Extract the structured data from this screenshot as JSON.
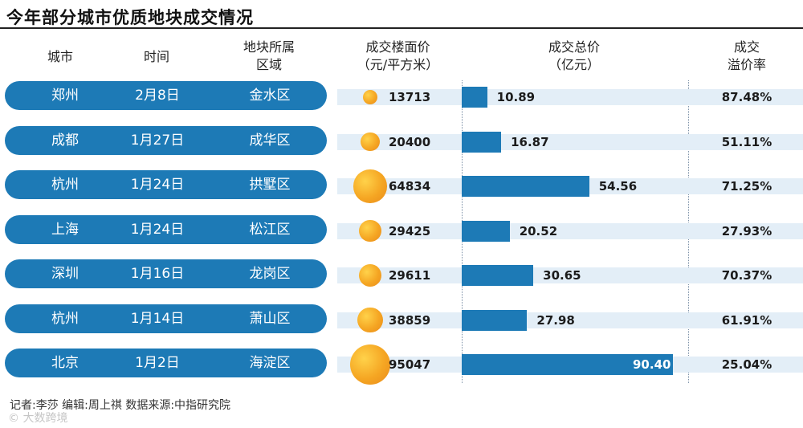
{
  "title": "今年部分城市优质地块成交情况",
  "headers": {
    "city": "城市",
    "date": "时间",
    "district_line1": "地块所属",
    "district_line2": "区域",
    "price_line1": "成交楼面价",
    "price_line2": "（元/平方米）",
    "total_line1": "成交总价",
    "total_line2": "（亿元）",
    "premium_line1": "成交",
    "premium_line2": "溢价率"
  },
  "colors": {
    "pill": "#1d7ab6",
    "bar": "#1d7ab6",
    "band": "#e3eef7",
    "bubble": "#f5a623"
  },
  "chart_data": {
    "type": "table",
    "columns": [
      "城市",
      "时间",
      "地块所属区域",
      "成交楼面价（元/平方米）",
      "成交总价（亿元）",
      "成交溢价率"
    ],
    "rows": [
      {
        "city": "郑州",
        "date": "2月8日",
        "district": "金水区",
        "price": 13713,
        "price_label": "13713",
        "total": 10.89,
        "total_label": "10.89",
        "premium": "87.48%"
      },
      {
        "city": "成都",
        "date": "1月27日",
        "district": "成华区",
        "price": 20400,
        "price_label": "20400",
        "total": 16.87,
        "total_label": "16.87",
        "premium": "51.11%"
      },
      {
        "city": "杭州",
        "date": "1月24日",
        "district": "拱墅区",
        "price": 64834,
        "price_label": "64834",
        "total": 54.56,
        "total_label": "54.56",
        "premium": "71.25%"
      },
      {
        "city": "上海",
        "date": "1月24日",
        "district": "松江区",
        "price": 29425,
        "price_label": "29425",
        "total": 20.52,
        "total_label": "20.52",
        "premium": "27.93%"
      },
      {
        "city": "深圳",
        "date": "1月16日",
        "district": "龙岗区",
        "price": 29611,
        "price_label": "29611",
        "total": 30.65,
        "total_label": "30.65",
        "premium": "70.37%"
      },
      {
        "city": "杭州",
        "date": "1月14日",
        "district": "萧山区",
        "price": 38859,
        "price_label": "38859",
        "total": 27.98,
        "total_label": "27.98",
        "premium": "61.91%"
      },
      {
        "city": "北京",
        "date": "1月2日",
        "district": "海淀区",
        "price": 95047,
        "price_label": "95047",
        "total": 90.4,
        "total_label": "90.40",
        "premium": "25.04%"
      }
    ]
  },
  "footer": "记者:李莎    编辑:周上祺    数据来源:中指研究院",
  "watermark": "© 大数跨境"
}
